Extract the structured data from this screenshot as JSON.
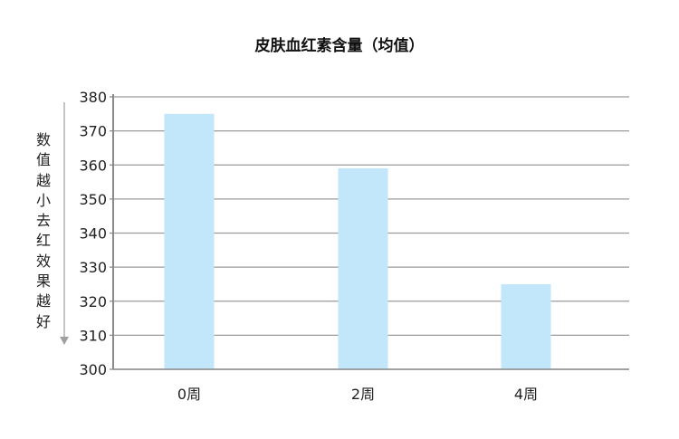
{
  "chart_data": {
    "type": "bar",
    "title": "皮肤血红素含量（均值）",
    "ylabel": "数值越小去红效果越好",
    "xlabel": "",
    "categories": [
      "0周",
      "2周",
      "4周"
    ],
    "values": [
      375,
      359,
      325
    ],
    "ylim": [
      300,
      380
    ],
    "yticks": [
      300,
      310,
      320,
      330,
      340,
      350,
      360,
      370,
      380
    ],
    "grid": true,
    "bar_color": "#c2e7fb",
    "grid_color": "#9a9a9a",
    "axis_color": "#8a8a8a"
  }
}
